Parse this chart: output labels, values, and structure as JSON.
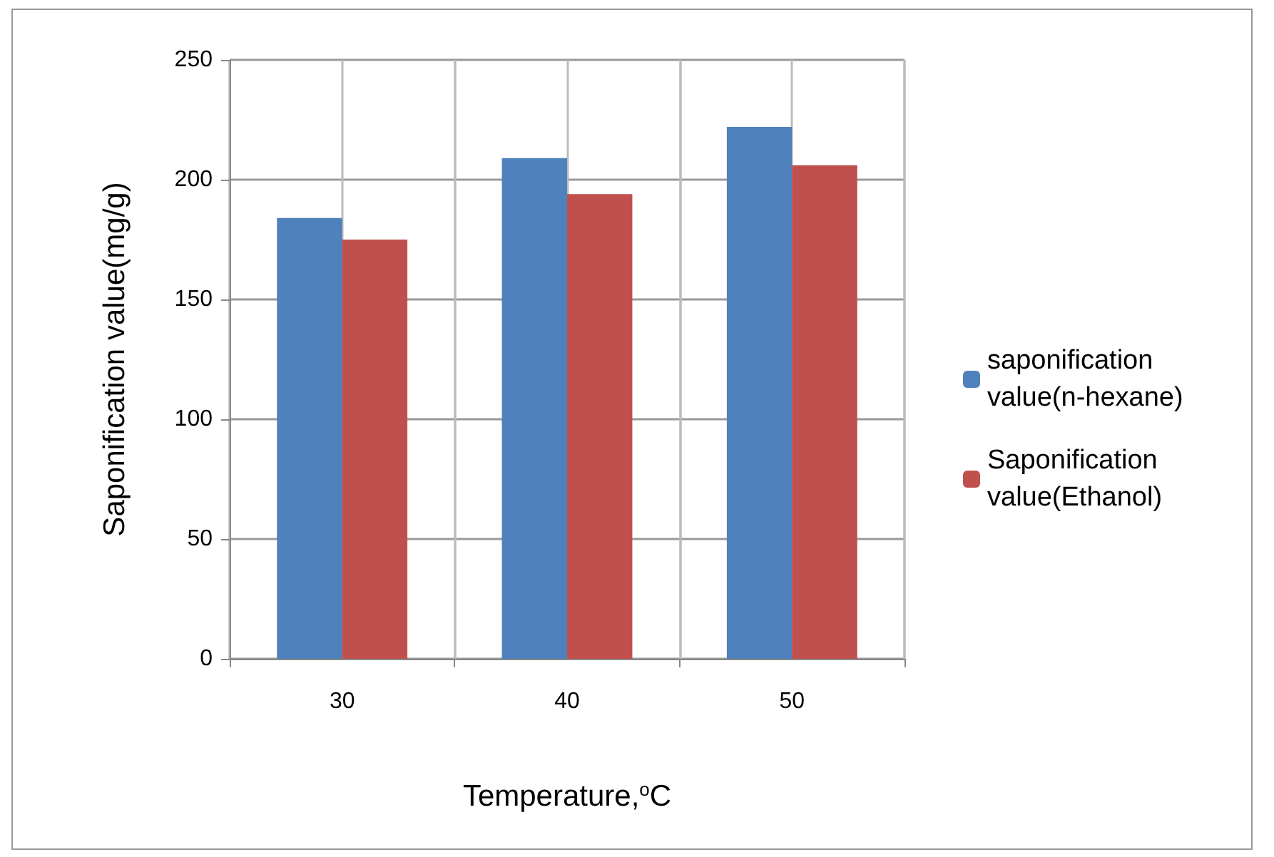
{
  "chart_data": {
    "type": "bar",
    "xlabel": "Temperature,$^{o}$C",
    "ylabel": "Saponification value(mg/g)",
    "categories": [
      "30",
      "40",
      "50"
    ],
    "series": [
      {
        "name": "saponification value(n-hexane)",
        "color": "#4f81bd",
        "values": [
          184,
          209,
          222
        ]
      },
      {
        "name": "Saponification value(Ethanol)",
        "color": "#c0504d",
        "values": [
          175,
          194,
          206
        ]
      }
    ],
    "ylim": [
      0,
      250
    ],
    "yticks": [
      0,
      50,
      100,
      150,
      200,
      250
    ],
    "grid": true,
    "legend": "right"
  }
}
